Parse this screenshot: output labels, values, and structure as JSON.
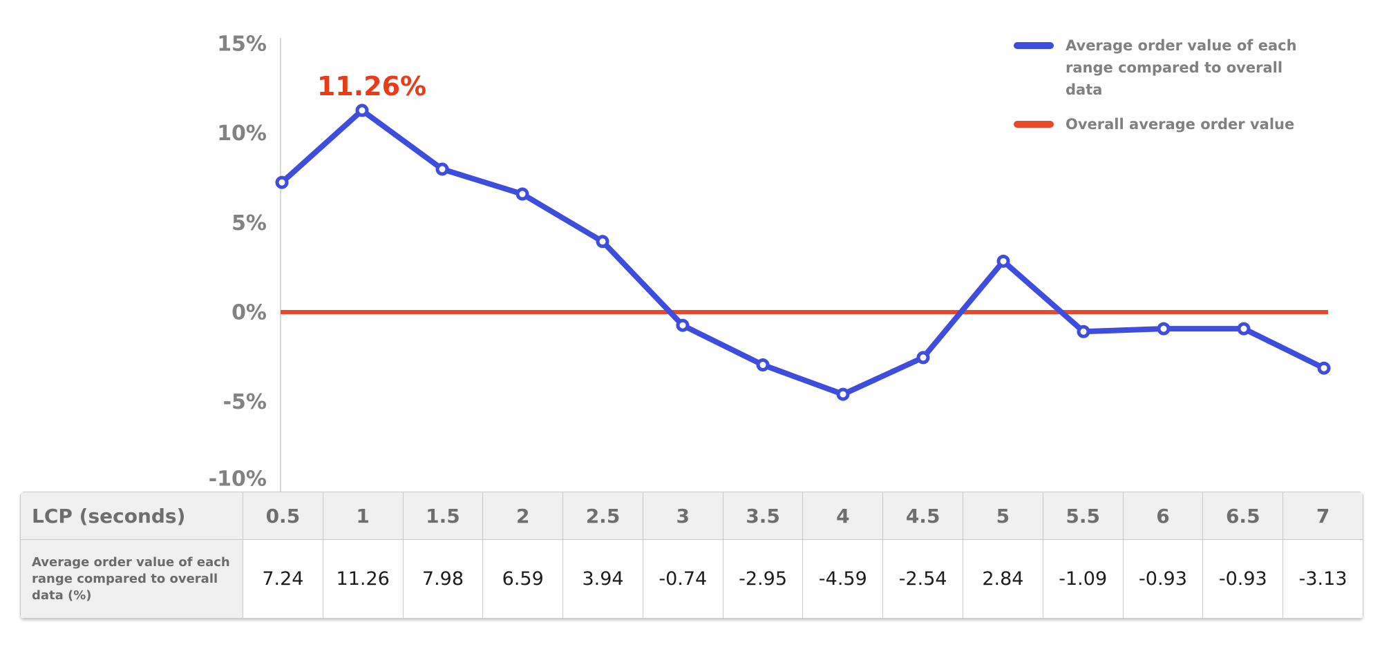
{
  "colors": {
    "line_blue": "#3e4ddd",
    "line_red": "#e8492b",
    "annotation_red": "#e73c15",
    "axis_line_gray": "#d9d9d9",
    "tick_label_gray": "#828282",
    "table_header_text": "#6e6e6e",
    "table_value_text": "#1c1c1c",
    "table_border": "#c9c9c9",
    "table_header_bg": "#f0f0f0"
  },
  "legend": {
    "items": [
      {
        "name": "series-line",
        "label": "Average order value of each range compared to overall data",
        "color": "#3e4ddd"
      },
      {
        "name": "baseline-line",
        "label": "Overall average order value",
        "color": "#e8492b"
      }
    ]
  },
  "chart_data": {
    "type": "line",
    "x_categories": [
      "0.5",
      "1",
      "1.5",
      "2",
      "2.5",
      "3",
      "3.5",
      "4",
      "4.5",
      "5",
      "5.5",
      "6",
      "6.5",
      "7"
    ],
    "xlabel": "LCP (seconds)",
    "series": [
      {
        "name": "Average order value of each range compared to overall data",
        "values": [
          7.24,
          11.26,
          7.98,
          6.59,
          3.94,
          -0.74,
          -2.95,
          -4.59,
          -2.54,
          2.84,
          -1.09,
          -0.93,
          -0.93,
          -3.13
        ],
        "color": "#3e4ddd"
      }
    ],
    "baseline": {
      "value": 0,
      "name": "Overall average order value",
      "color": "#e8492b"
    },
    "y_ticks": [
      {
        "value": 15,
        "label": "15%"
      },
      {
        "value": 10,
        "label": "10%"
      },
      {
        "value": 5,
        "label": "5%"
      },
      {
        "value": 0,
        "label": "0%"
      },
      {
        "value": -5,
        "label": "-5%"
      },
      {
        "value": -10,
        "label": "-10%"
      }
    ],
    "ylim": [
      -10,
      15
    ],
    "grid": "none",
    "legend_position": "top-right",
    "annotation": {
      "text": "11.26%",
      "x_index": 1,
      "value": 11.26
    }
  },
  "table": {
    "corner_label": "LCP (seconds)",
    "row_label": "Average order value of each range compared to overall data (%)",
    "columns": [
      "0.5",
      "1",
      "1.5",
      "2",
      "2.5",
      "3",
      "3.5",
      "4",
      "4.5",
      "5",
      "5.5",
      "6",
      "6.5",
      "7"
    ],
    "values": [
      "7.24",
      "11.26",
      "7.98",
      "6.59",
      "3.94",
      "-0.74",
      "-2.95",
      "-4.59",
      "-2.54",
      "2.84",
      "-1.09",
      "-0.93",
      "-0.93",
      "-3.13"
    ]
  }
}
